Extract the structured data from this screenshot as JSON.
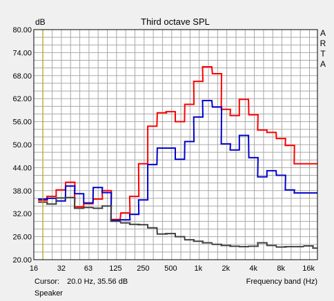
{
  "chart_data": {
    "type": "line",
    "title": "Third octave SPL",
    "ylabel": "dB",
    "xlabel": "Frequency band (Hz)",
    "side_label": "ARTA",
    "ylim": [
      20,
      80
    ],
    "y_ticks": [
      "20.00",
      "26.00",
      "32.00",
      "38.00",
      "44.00",
      "50.00",
      "56.00",
      "62.00",
      "68.00",
      "74.00",
      "80.00"
    ],
    "x_scale": "log",
    "xlim": [
      16,
      20000
    ],
    "x_ticks": [
      {
        "label": "16",
        "value": 16
      },
      {
        "label": "32",
        "value": 32
      },
      {
        "label": "63",
        "value": 63
      },
      {
        "label": "125",
        "value": 125
      },
      {
        "label": "250",
        "value": 250
      },
      {
        "label": "500",
        "value": 500
      },
      {
        "label": "1k",
        "value": 1000
      },
      {
        "label": "2k",
        "value": 2000
      },
      {
        "label": "4k",
        "value": 4000
      },
      {
        "label": "8k",
        "value": 8000
      },
      {
        "label": "16k",
        "value": 16000
      }
    ],
    "band_centers": [
      20,
      25,
      31.5,
      40,
      50,
      63,
      80,
      100,
      125,
      160,
      200,
      250,
      315,
      400,
      500,
      630,
      800,
      1000,
      1250,
      1600,
      2000,
      2500,
      3150,
      4000,
      5000,
      6300,
      8000,
      10000,
      12500,
      16000,
      20000
    ],
    "series": [
      {
        "color": "#ff0000",
        "values": [
          35.5,
          36.5,
          38.2,
          40.2,
          33.8,
          34.6,
          35.8,
          38.0,
          30.5,
          32.2,
          36.5,
          45.0,
          54.8,
          58.3,
          58.6,
          56.0,
          60.5,
          66.5,
          70.3,
          68.5,
          59.2,
          57.6,
          61.8,
          57.8,
          53.8,
          53.2,
          51.6,
          49.8,
          45.0,
          45.0,
          45.0
        ]
      },
      {
        "color": "#0000cc",
        "values": [
          35.8,
          36.0,
          35.3,
          39.2,
          37.2,
          34.8,
          38.8,
          37.5,
          30.3,
          30.4,
          31.8,
          35.6,
          44.8,
          49.1,
          49.1,
          46.2,
          50.8,
          57.2,
          61.5,
          59.8,
          50.2,
          48.6,
          52.4,
          46.6,
          41.6,
          43.2,
          42.0,
          38.2,
          37.4,
          37.4,
          37.4
        ]
      },
      {
        "color": "#404040",
        "values": [
          35.0,
          34.5,
          36.1,
          36.2,
          33.4,
          33.6,
          33.4,
          34.0,
          30.0,
          29.6,
          29.2,
          29.1,
          28.3,
          26.7,
          26.8,
          26.0,
          25.2,
          24.8,
          24.4,
          24.0,
          23.7,
          23.5,
          23.4,
          23.5,
          24.4,
          23.7,
          23.3,
          23.4,
          23.4,
          23.6,
          23.0
        ]
      }
    ],
    "cursor": {
      "x": 20.0,
      "color": "#c8b400"
    },
    "grid": true,
    "legend": "none"
  },
  "footer": {
    "cursor_label": "Cursor:",
    "cursor_value": "20.0 Hz, 35.56 dB",
    "x_axis_label": "Frequency band (Hz)",
    "source": "Speaker"
  }
}
